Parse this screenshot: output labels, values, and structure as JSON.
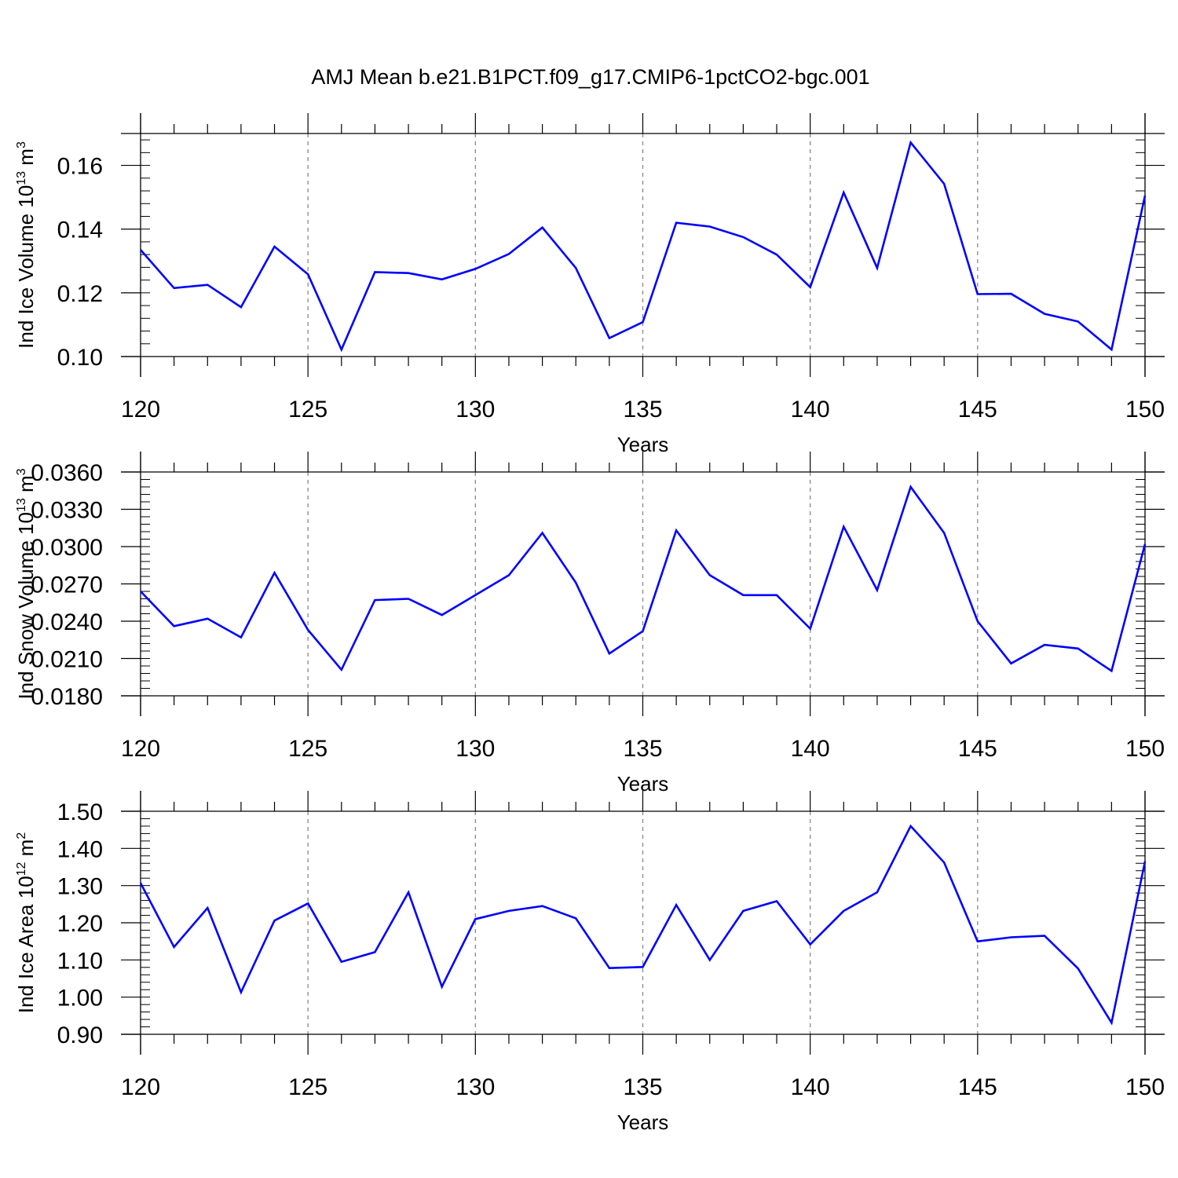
{
  "title": "AMJ Mean b.e21.B1PCT.f09_g17.CMIP6-1pctCO2-bgc.001",
  "colors": {
    "line": "#0000ff",
    "axis": "#000000",
    "grid": "#888888"
  },
  "chart_data": [
    {
      "type": "line",
      "xlabel": "Years",
      "ylabel_main": "Ind Ice Volume 10",
      "ylabel_exp": "13",
      "ylabel_unit": " m",
      "ylabel_unit_exp": "3",
      "xlim": [
        120,
        150
      ],
      "ylim": [
        0.1,
        0.17
      ],
      "xticks": [
        120,
        125,
        130,
        135,
        140,
        145,
        150
      ],
      "yticks": [
        0.1,
        0.12,
        0.14,
        0.16
      ],
      "ytick_labels": [
        "0.10",
        "0.12",
        "0.14",
        "0.16"
      ],
      "x": [
        120,
        121,
        122,
        123,
        124,
        125,
        126,
        127,
        128,
        129,
        130,
        131,
        132,
        133,
        134,
        135,
        136,
        137,
        138,
        139,
        140,
        141,
        142,
        143,
        144,
        145,
        146,
        147,
        148,
        149,
        150
      ],
      "series": [
        {
          "values": [
            0.1335,
            0.1215,
            0.1225,
            0.1155,
            0.1345,
            0.1258,
            0.1022,
            0.1265,
            0.1262,
            0.1242,
            0.1275,
            0.1322,
            0.1405,
            0.1278,
            0.1058,
            0.1108,
            0.142,
            0.1408,
            0.1375,
            0.132,
            0.1218,
            0.1515,
            0.1278,
            0.1672,
            0.1542,
            0.1196,
            0.1197,
            0.1134,
            0.111,
            0.1022,
            0.1505
          ]
        }
      ]
    },
    {
      "type": "line",
      "xlabel": "Years",
      "ylabel_main": "Ind Snow Volume 10",
      "ylabel_exp": "13",
      "ylabel_unit": " m",
      "ylabel_unit_exp": "3",
      "xlim": [
        120,
        150
      ],
      "ylim": [
        0.018,
        0.036
      ],
      "xticks": [
        120,
        125,
        130,
        135,
        140,
        145,
        150
      ],
      "yticks": [
        0.018,
        0.021,
        0.024,
        0.027,
        0.03,
        0.033,
        0.036
      ],
      "ytick_labels": [
        "0.0180",
        "0.0210",
        "0.0240",
        "0.0270",
        "0.0300",
        "0.0330",
        "0.0360"
      ],
      "x": [
        120,
        121,
        122,
        123,
        124,
        125,
        126,
        127,
        128,
        129,
        130,
        131,
        132,
        133,
        134,
        135,
        136,
        137,
        138,
        139,
        140,
        141,
        142,
        143,
        144,
        145,
        146,
        147,
        148,
        149,
        150
      ],
      "series": [
        {
          "values": [
            0.0264,
            0.0236,
            0.0242,
            0.0227,
            0.0279,
            0.0233,
            0.0201,
            0.0257,
            0.0258,
            0.0245,
            0.0261,
            0.0277,
            0.0311,
            0.0271,
            0.0214,
            0.0232,
            0.0313,
            0.0277,
            0.0261,
            0.0261,
            0.0234,
            0.0316,
            0.0265,
            0.0348,
            0.0311,
            0.024,
            0.0206,
            0.0221,
            0.0218,
            0.02,
            0.0302
          ]
        }
      ]
    },
    {
      "type": "line",
      "xlabel": "Years",
      "ylabel_main": "Ind Ice Area 10",
      "ylabel_exp": "12",
      "ylabel_unit": " m",
      "ylabel_unit_exp": "2",
      "xlim": [
        120,
        150
      ],
      "ylim": [
        0.9,
        1.5
      ],
      "xticks": [
        120,
        125,
        130,
        135,
        140,
        145,
        150
      ],
      "yticks": [
        0.9,
        1.0,
        1.1,
        1.2,
        1.3,
        1.4,
        1.5
      ],
      "ytick_labels": [
        "0.90",
        "1.00",
        "1.10",
        "1.20",
        "1.30",
        "1.40",
        "1.50"
      ],
      "x": [
        120,
        121,
        122,
        123,
        124,
        125,
        126,
        127,
        128,
        129,
        130,
        131,
        132,
        133,
        134,
        135,
        136,
        137,
        138,
        139,
        140,
        141,
        142,
        143,
        144,
        145,
        146,
        147,
        148,
        149,
        150
      ],
      "series": [
        {
          "values": [
            1.307,
            1.135,
            1.24,
            1.013,
            1.206,
            1.252,
            1.095,
            1.121,
            1.282,
            1.028,
            1.21,
            1.232,
            1.245,
            1.212,
            1.078,
            1.081,
            1.248,
            1.1,
            1.232,
            1.258,
            1.142,
            1.232,
            1.282,
            1.46,
            1.362,
            1.15,
            1.161,
            1.165,
            1.077,
            0.931,
            1.365
          ]
        }
      ]
    }
  ]
}
